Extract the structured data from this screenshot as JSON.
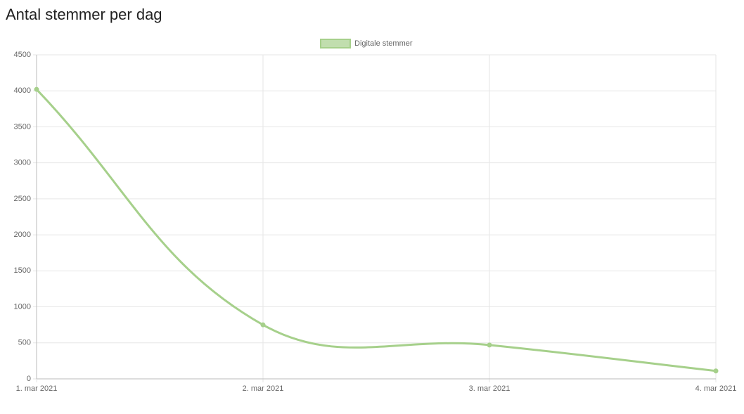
{
  "chart_data": {
    "type": "line",
    "title": "Antal stemmer per dag",
    "categories": [
      "1. mar 2021",
      "2. mar 2021",
      "3. mar 2021",
      "4. mar 2021"
    ],
    "series": [
      {
        "name": "Digitale stemmer",
        "color": "#a6d08b",
        "values": [
          4020,
          750,
          470,
          110
        ]
      }
    ],
    "ylim": [
      0,
      4500
    ],
    "yticks": [
      0,
      500,
      1000,
      1500,
      2000,
      2500,
      3000,
      3500,
      4000,
      4500
    ],
    "grid": true,
    "legend": "top"
  }
}
